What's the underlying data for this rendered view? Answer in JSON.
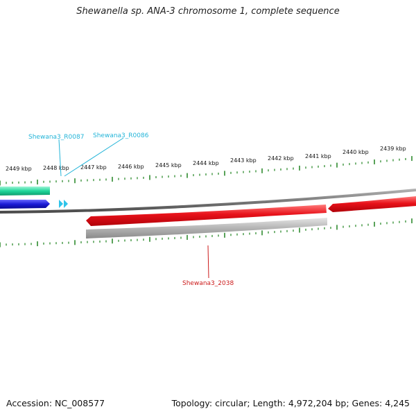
{
  "title": "Shewanella sp. ANA-3 chromosome 1, complete sequence",
  "footer": {
    "accession": "Accession: NC_008577",
    "summary": "Topology: circular; Length: 4,972,204 bp; Genes: 4,245"
  },
  "scale_labels": [
    "2449 kbp",
    "2448 kbp",
    "2447 kbp",
    "2446 kbp",
    "2445 kbp",
    "2444 kbp",
    "2443 kbp",
    "2442 kbp",
    "2441 kbp",
    "2440 kbp",
    "2439 kbp"
  ],
  "features": {
    "rna_1": "Shewana3_R0087",
    "rna_2": "Shewana3_R0086",
    "gene_1": "Shewana3_2038"
  },
  "colors": {
    "tick": "#2e8b2e",
    "rna_label": "#22b4d8",
    "gene_label": "#cc1a1a",
    "red_feature": "#e8121a",
    "blue_feature": "#1a1ad6",
    "teal_feature": "#1ed69a",
    "backbone": "#7a7a7a"
  }
}
